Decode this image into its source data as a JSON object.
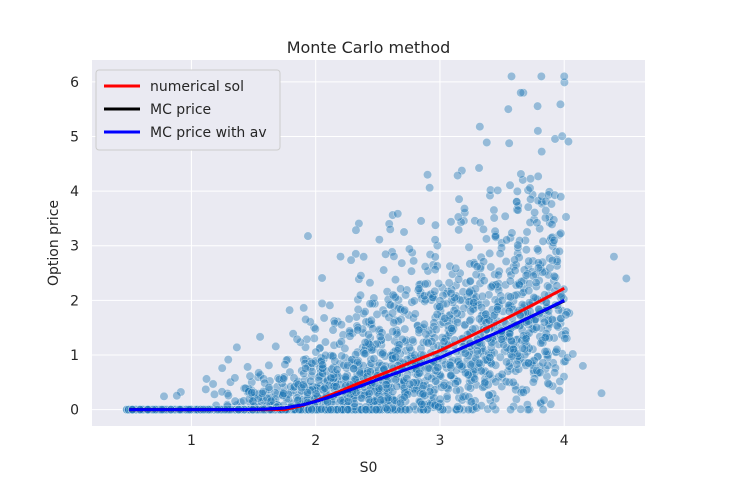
{
  "chart_data": {
    "type": "scatter",
    "title": "Monte Carlo method",
    "xlabel": "S0",
    "ylabel": "Option price",
    "xlim": [
      0.2,
      4.65
    ],
    "ylim": [
      -0.3,
      6.4
    ],
    "xticks": [
      1,
      2,
      3,
      4
    ],
    "yticks": [
      0,
      1,
      2,
      3,
      4,
      5,
      6
    ],
    "grid": true,
    "legend_position": "top-left",
    "scatter_color": "#1f77b4",
    "series": [
      {
        "name": "numerical sol",
        "type": "line",
        "color": "#ff0000",
        "x": [
          0.5,
          1.0,
          1.4,
          1.6,
          1.75,
          1.9,
          2.0,
          2.1,
          2.2,
          2.3,
          2.5,
          2.75,
          3.0,
          3.25,
          3.5,
          3.75,
          4.0
        ],
        "y": [
          0.0,
          0.0,
          0.0,
          0.0,
          0.0,
          0.08,
          0.16,
          0.25,
          0.34,
          0.44,
          0.62,
          0.85,
          1.08,
          1.35,
          1.63,
          1.92,
          2.22
        ]
      },
      {
        "name": "MC price",
        "type": "line",
        "color": "#000000",
        "x": [
          0.5,
          1.0,
          1.4,
          1.6,
          1.75,
          1.9,
          2.0,
          2.1,
          2.2,
          2.3,
          2.5,
          2.75,
          3.0,
          3.25,
          3.5,
          3.75,
          4.0
        ],
        "y": [
          0.0,
          0.0,
          0.0,
          0.01,
          0.03,
          0.09,
          0.15,
          0.22,
          0.3,
          0.38,
          0.55,
          0.75,
          0.95,
          1.2,
          1.45,
          1.72,
          1.99
        ]
      },
      {
        "name": "MC price with av",
        "type": "line",
        "color": "#0000ff",
        "x": [
          0.5,
          1.0,
          1.4,
          1.6,
          1.75,
          1.9,
          2.0,
          2.1,
          2.2,
          2.3,
          2.5,
          2.75,
          3.0,
          3.25,
          3.5,
          3.75,
          4.0
        ],
        "y": [
          0.0,
          0.0,
          0.0,
          0.01,
          0.03,
          0.09,
          0.15,
          0.22,
          0.3,
          0.38,
          0.55,
          0.75,
          0.95,
          1.2,
          1.45,
          1.72,
          2.0
        ]
      }
    ]
  }
}
